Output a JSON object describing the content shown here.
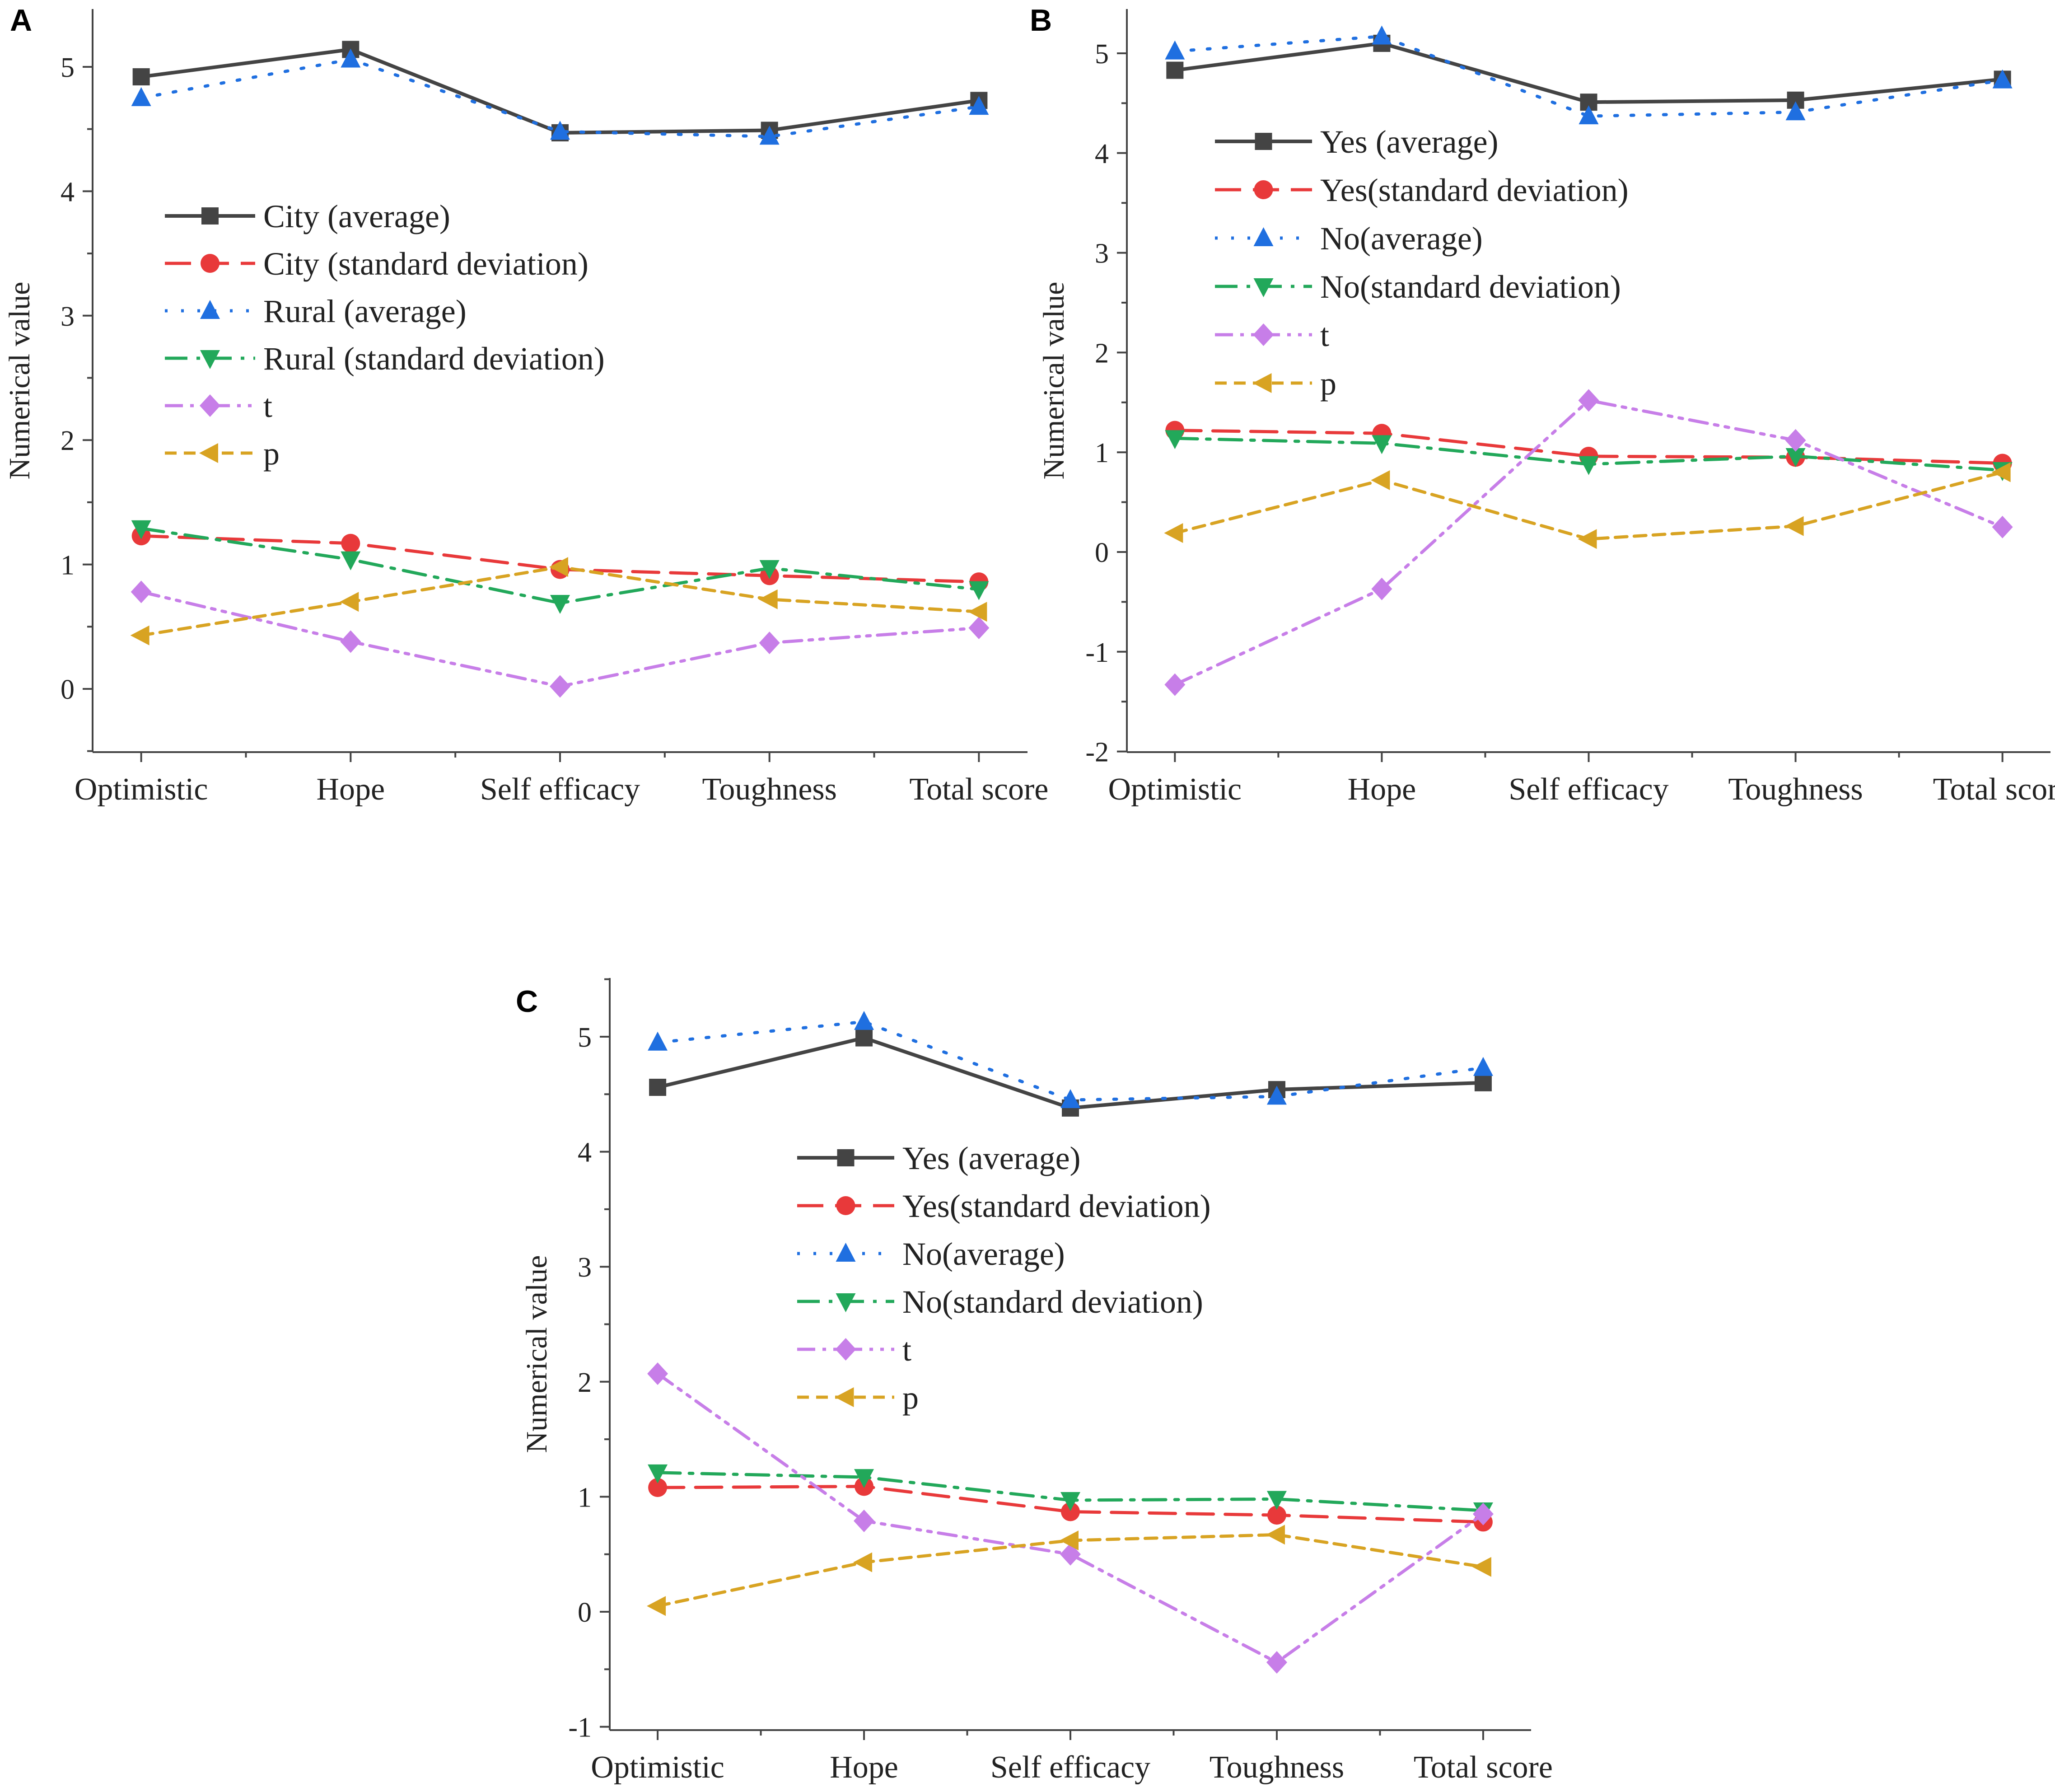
{
  "figure": {
    "colors": {
      "axis": "#444444",
      "black": "#444444",
      "red": "#e8393a",
      "blue": "#1f6fe0",
      "green": "#22a85a",
      "purple": "#c77ee8",
      "orange": "#d8a322"
    }
  },
  "chart_data": [
    {
      "panel": "A",
      "type": "line",
      "ylabel": "Numerical value",
      "xlabel": "",
      "categories": [
        "Optimistic",
        "Hope",
        "Self efficacy",
        "Toughness",
        "Total score"
      ],
      "ylim": [
        -0.5,
        5.5
      ],
      "yticks": [
        "0",
        "1",
        "2",
        "3",
        "4",
        "5"
      ],
      "legend_position": "center-left",
      "series": [
        {
          "name": "City (average)",
          "values": [
            4.92,
            5.14,
            4.47,
            4.49,
            4.73
          ],
          "color": "black",
          "marker": "square",
          "dash": "solid"
        },
        {
          "name": "City (standard deviation)",
          "values": [
            1.23,
            1.17,
            0.96,
            0.91,
            0.86
          ],
          "color": "red",
          "marker": "circle",
          "dash": "dash"
        },
        {
          "name": "Rural (average)",
          "values": [
            4.75,
            5.06,
            4.48,
            4.44,
            4.68
          ],
          "color": "blue",
          "marker": "triangle-up",
          "dash": "dot"
        },
        {
          "name": "Rural (standard deviation)",
          "values": [
            1.29,
            1.04,
            0.69,
            0.97,
            0.8
          ],
          "color": "green",
          "marker": "triangle-down",
          "dash": "dashdot"
        },
        {
          "name": "t",
          "values": [
            0.78,
            0.38,
            0.02,
            0.37,
            0.49
          ],
          "color": "purple",
          "marker": "diamond",
          "dash": "dashdotdot"
        },
        {
          "name": "p",
          "values": [
            0.43,
            0.7,
            0.98,
            0.72,
            0.62
          ],
          "color": "orange",
          "marker": "triangle-left",
          "dash": "shortdash"
        }
      ]
    },
    {
      "panel": "B",
      "type": "line",
      "ylabel": "Numerical value",
      "xlabel": "",
      "categories": [
        "Optimistic",
        "Hope",
        "Self efficacy",
        "Toughness",
        "Total score"
      ],
      "ylim": [
        -2,
        5.5
      ],
      "yticks": [
        "-2",
        "-1",
        "0",
        "1",
        "2",
        "3",
        "4",
        "5"
      ],
      "legend_position": "top-left",
      "series": [
        {
          "name": "Yes (average)",
          "values": [
            4.83,
            5.1,
            4.51,
            4.53,
            4.74
          ],
          "color": "black",
          "marker": "square",
          "dash": "solid"
        },
        {
          "name": "Yes(standard deviation)",
          "values": [
            1.22,
            1.19,
            0.96,
            0.95,
            0.89
          ],
          "color": "red",
          "marker": "circle",
          "dash": "dash"
        },
        {
          "name": "No(average)",
          "values": [
            5.02,
            5.17,
            4.37,
            4.41,
            4.73
          ],
          "color": "blue",
          "marker": "triangle-up",
          "dash": "dot"
        },
        {
          "name": "No(standard deviation)",
          "values": [
            1.14,
            1.09,
            0.88,
            0.96,
            0.82
          ],
          "color": "green",
          "marker": "triangle-down",
          "dash": "dashdot"
        },
        {
          "name": "t",
          "values": [
            -1.33,
            -0.37,
            1.52,
            1.12,
            0.25
          ],
          "color": "purple",
          "marker": "diamond",
          "dash": "dashdotdot"
        },
        {
          "name": "p",
          "values": [
            0.19,
            0.72,
            0.13,
            0.26,
            0.8
          ],
          "color": "orange",
          "marker": "triangle-left",
          "dash": "shortdash"
        }
      ]
    },
    {
      "panel": "C",
      "type": "line",
      "ylabel": "Numerical value",
      "xlabel": "",
      "categories": [
        "Optimistic",
        "Hope",
        "Self efficacy",
        "Toughness",
        "Total score"
      ],
      "ylim": [
        -1,
        5.5
      ],
      "yticks": [
        "-1",
        "0",
        "1",
        "2",
        "3",
        "4",
        "5"
      ],
      "legend_position": "top-left",
      "series": [
        {
          "name": "Yes (average)",
          "values": [
            4.56,
            4.99,
            4.38,
            4.54,
            4.6
          ],
          "color": "black",
          "marker": "square",
          "dash": "solid"
        },
        {
          "name": "Yes(standard deviation)",
          "values": [
            1.08,
            1.09,
            0.87,
            0.84,
            0.78
          ],
          "color": "red",
          "marker": "circle",
          "dash": "dash"
        },
        {
          "name": "No(average)",
          "values": [
            4.95,
            5.13,
            4.45,
            4.48,
            4.73
          ],
          "color": "blue",
          "marker": "triangle-up",
          "dash": "dot"
        },
        {
          "name": "No(standard deviation)",
          "values": [
            1.21,
            1.17,
            0.97,
            0.98,
            0.88
          ],
          "color": "green",
          "marker": "triangle-down",
          "dash": "dashdot"
        },
        {
          "name": "t",
          "values": [
            2.07,
            0.79,
            0.5,
            -0.44,
            0.85
          ],
          "color": "purple",
          "marker": "diamond",
          "dash": "dashdotdot"
        },
        {
          "name": "p",
          "values": [
            0.05,
            0.43,
            0.62,
            0.67,
            0.39
          ],
          "color": "orange",
          "marker": "triangle-left",
          "dash": "shortdash"
        }
      ]
    }
  ]
}
